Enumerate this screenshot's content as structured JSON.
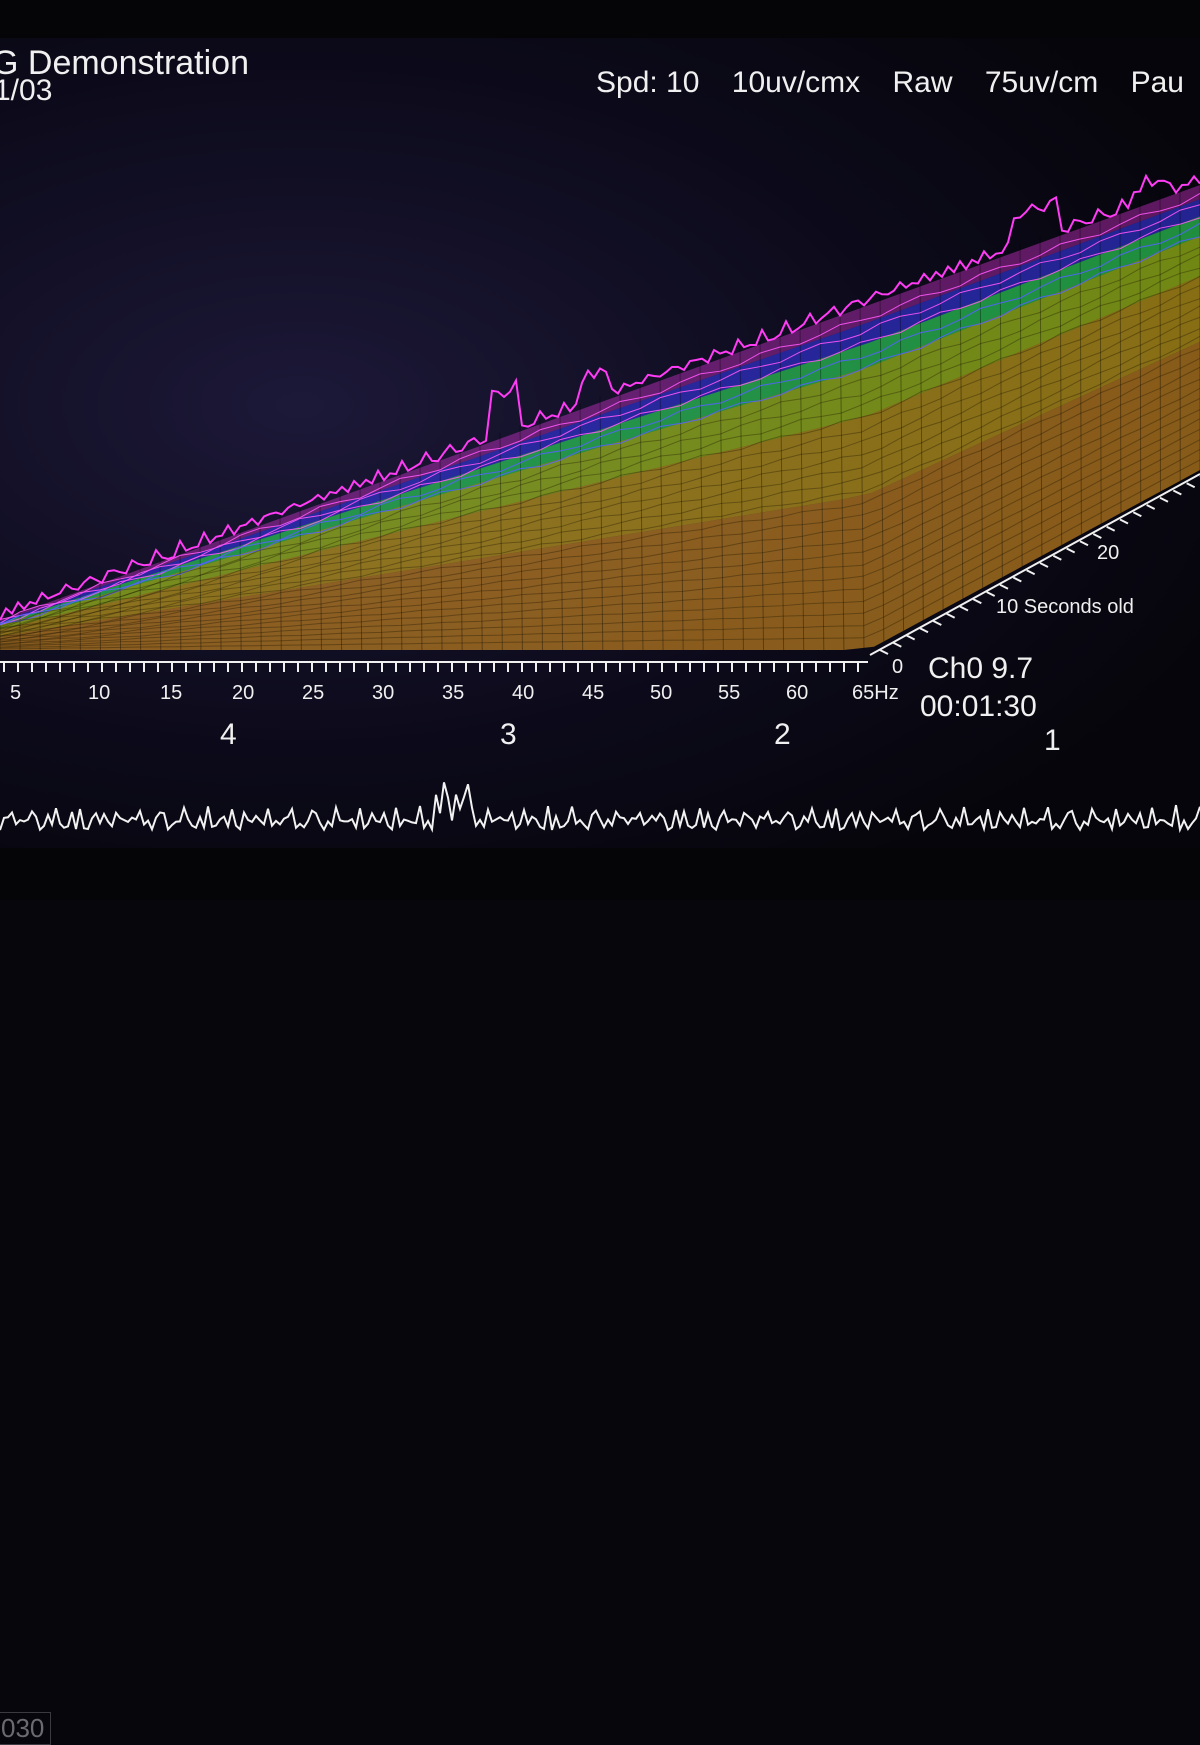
{
  "header": {
    "title": "G Demonstration",
    "date": "1/03",
    "settings": [
      "Spd: 10",
      "10uv/cmx",
      "Raw",
      "75uv/cm",
      "Pau"
    ]
  },
  "spectrum": {
    "freq_ticks": [
      "5",
      "10",
      "15",
      "20",
      "25",
      "30",
      "35",
      "40",
      "45",
      "50",
      "55",
      "60",
      "65Hz"
    ],
    "depth_labels": {
      "zero": "0",
      "ten": "10 Seconds old",
      "twenty": "20"
    },
    "band_colors": [
      "#ff3cf5",
      "#3a3cff",
      "#33ff66",
      "#c8f21a",
      "#f0c21a",
      "#f0a020"
    ]
  },
  "markers": [
    "4",
    "3",
    "2",
    "1"
  ],
  "channel": {
    "label": "Ch0  9.7",
    "time": "00:01:30"
  },
  "footer": {
    "view_label": "030"
  }
}
